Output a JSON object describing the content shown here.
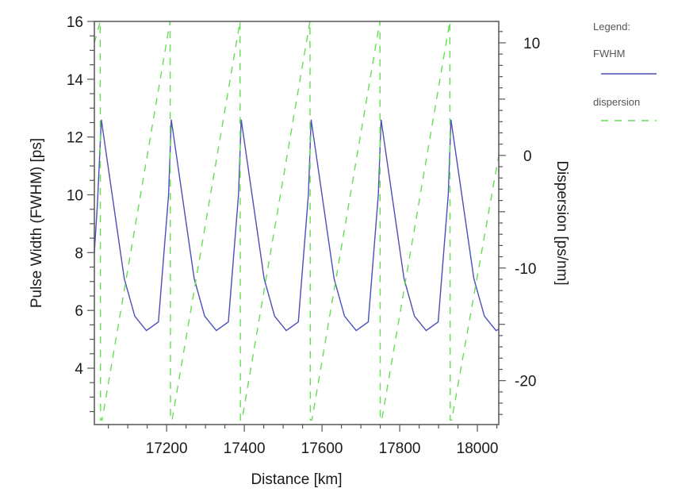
{
  "chart_data": {
    "type": "line",
    "title": "",
    "xlabel": "Distance [km]",
    "ylabel": "Pulse Width (FWHM) [ps]",
    "y2label": "Dispersion [ps/nm]",
    "xlim": [
      17014,
      18055
    ],
    "ylim": [
      2.05,
      16
    ],
    "y2lim": [
      -23.9,
      11.9
    ],
    "grid": false,
    "legend_position": "right-outside",
    "legend_title": "Legend:",
    "x_ticks": [
      17200,
      17400,
      17600,
      17800,
      18000
    ],
    "x_tick_labels": [
      "17200",
      "17400",
      "17600",
      "17800",
      "18000"
    ],
    "x_minor_step": 50,
    "y_ticks": [
      4,
      6,
      8,
      10,
      12,
      14,
      16
    ],
    "y_tick_labels": [
      "4",
      "6",
      "8",
      "10",
      "12",
      "14",
      "16"
    ],
    "y_minor_step": 0.5,
    "y2_ticks": [
      -20,
      -10,
      0,
      10
    ],
    "y2_tick_labels": [
      "-20",
      "-10",
      "0",
      "10"
    ],
    "y2_minor_step": 1,
    "series": [
      {
        "name": "FWHM",
        "axis": "left",
        "color": "#4b4fb8",
        "style": "solid",
        "x": [
          17014,
          17022,
          17032,
          17091,
          17118,
          17148,
          17179,
          17205,
          17212,
          17271,
          17298,
          17328,
          17359,
          17385,
          17392,
          17451,
          17478,
          17508,
          17539,
          17565,
          17572,
          17631,
          17658,
          17688,
          17719,
          17745,
          17752,
          17811,
          17838,
          17868,
          17899,
          17925,
          17932,
          17991,
          18018,
          18048,
          18055
        ],
        "values": [
          8.0,
          9.7,
          12.6,
          7.1,
          5.8,
          5.3,
          5.6,
          10.0,
          12.6,
          7.1,
          5.8,
          5.3,
          5.6,
          10.0,
          12.6,
          7.1,
          5.8,
          5.3,
          5.6,
          10.0,
          12.6,
          7.1,
          5.8,
          5.3,
          5.6,
          10.0,
          12.6,
          7.1,
          5.8,
          5.3,
          5.6,
          10.0,
          12.6,
          7.1,
          5.8,
          5.3,
          5.35
        ]
      },
      {
        "name": "dispersion",
        "axis": "right",
        "color": "#66dd55",
        "style": "dashed",
        "x": [
          17014,
          17029,
          17030,
          17034,
          17209,
          17210,
          17214,
          17389,
          17390,
          17394,
          17569,
          17570,
          17574,
          17749,
          17750,
          17754,
          17929,
          17930,
          17934,
          18055
        ],
        "values": [
          10.0,
          11.9,
          -23.5,
          -23.5,
          11.9,
          -23.5,
          -23.5,
          11.9,
          -23.5,
          -23.5,
          11.9,
          -23.5,
          -23.5,
          11.9,
          -23.5,
          -23.5,
          11.9,
          -23.5,
          -23.5,
          0.0
        ]
      }
    ]
  },
  "legend": {
    "title": "Legend:",
    "items": [
      {
        "label": "FWHM",
        "color": "#4b4fb8",
        "style": "solid"
      },
      {
        "label": "dispersion",
        "color": "#66dd55",
        "style": "dashed"
      }
    ]
  }
}
